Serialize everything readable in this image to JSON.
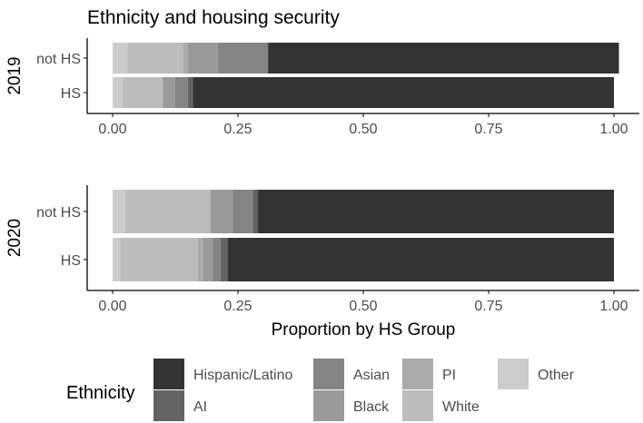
{
  "chart_data": {
    "type": "bar",
    "orientation": "horizontal",
    "stacked": true,
    "title": "Ethnicity and housing security",
    "xlabel": "Proportion by HS Group",
    "xlim": [
      0,
      1
    ],
    "xticks": [
      "0.00",
      "0.25",
      "0.50",
      "0.75",
      "1.00"
    ],
    "tick_values": [
      0,
      0.25,
      0.5,
      0.75,
      1.0
    ],
    "facets": [
      {
        "label": "2019",
        "categories": [
          "not HS",
          "HS"
        ],
        "series": [
          {
            "name": "Other",
            "values": [
              0.03,
              0.02
            ]
          },
          {
            "name": "White",
            "values": [
              0.11,
              0.08
            ]
          },
          {
            "name": "PI",
            "values": [
              0.01,
              0.0
            ]
          },
          {
            "name": "Black",
            "values": [
              0.06,
              0.025
            ]
          },
          {
            "name": "Asian",
            "values": [
              0.1,
              0.025
            ]
          },
          {
            "name": "AI",
            "values": [
              0.0,
              0.01
            ]
          },
          {
            "name": "Hispanic/Latino",
            "values": [
              0.7,
              0.84
            ]
          }
        ]
      },
      {
        "label": "2020",
        "categories": [
          "not HS",
          "HS"
        ],
        "series": [
          {
            "name": "Other",
            "values": [
              0.025,
              0.015
            ]
          },
          {
            "name": "White",
            "values": [
              0.17,
              0.155
            ]
          },
          {
            "name": "PI",
            "values": [
              0.0,
              0.01
            ]
          },
          {
            "name": "Black",
            "values": [
              0.045,
              0.02
            ]
          },
          {
            "name": "Asian",
            "values": [
              0.04,
              0.015
            ]
          },
          {
            "name": "AI",
            "values": [
              0.01,
              0.015
            ]
          },
          {
            "name": "Hispanic/Latino",
            "values": [
              0.71,
              0.77
            ]
          }
        ]
      }
    ],
    "legend": {
      "title": "Ethnicity",
      "position": "bottom",
      "entries": [
        "Hispanic/Latino",
        "AI",
        "Asian",
        "Black",
        "PI",
        "White",
        "Other"
      ]
    },
    "colors": {
      "Hispanic/Latino": "#333333",
      "AI": "#636363",
      "Asian": "#848484",
      "Black": "#9a9a9a",
      "PI": "#ababab",
      "White": "#bcbcbc",
      "Other": "#cccccc"
    },
    "axis_color": "#000000",
    "text_color": "#4d4d4d",
    "title_color": "#000000"
  }
}
